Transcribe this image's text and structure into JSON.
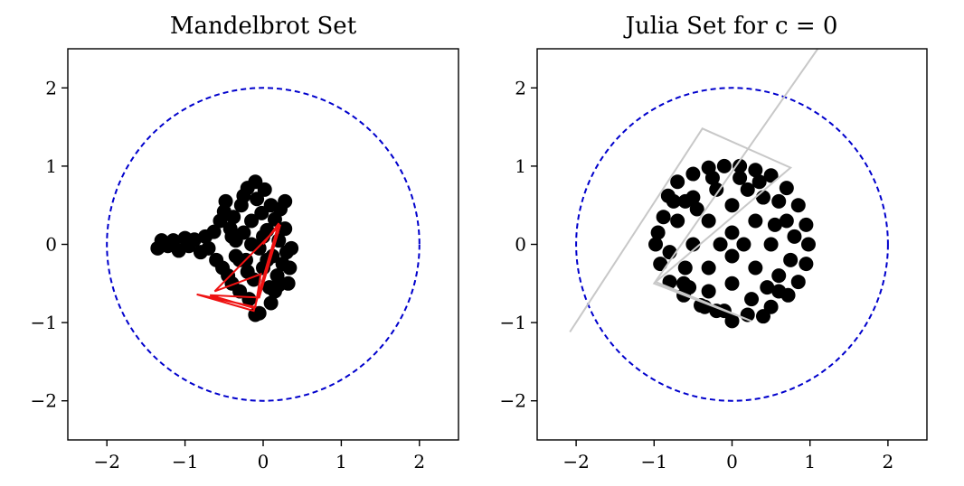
{
  "chart_data": [
    {
      "type": "scatter",
      "title": "Mandelbrot Set",
      "xlabel": "",
      "ylabel": "",
      "xlim": [
        -2.5,
        2.5
      ],
      "ylim": [
        -2.5,
        2.5
      ],
      "xticks": [
        -2,
        -1,
        0,
        1,
        2
      ],
      "yticks": [
        -2,
        -1,
        0,
        1,
        2
      ],
      "xtick_labels": [
        "−2",
        "−1",
        "0",
        "1",
        "2"
      ],
      "ytick_labels": [
        "−2",
        "−1",
        "0",
        "1",
        "2"
      ],
      "grid": false,
      "point_color": "#000000",
      "circle": {
        "center": [
          0,
          0
        ],
        "radius": 2,
        "color": "#0000cc",
        "style": "dashed"
      },
      "path": {
        "color": "#ee1111",
        "points": [
          [
            0.0,
            0.0
          ],
          [
            0.2,
            0.27
          ],
          [
            -0.12,
            -0.85
          ],
          [
            -0.85,
            -0.64
          ],
          [
            -0.1,
            -0.8
          ],
          [
            -0.03,
            -0.38
          ],
          [
            -0.62,
            -0.6
          ],
          [
            0.22,
            0.25
          ],
          [
            -0.05,
            -0.68
          ],
          [
            -0.68,
            -0.65
          ],
          [
            -0.1,
            -0.82
          ]
        ]
      },
      "points": [
        [
          -1.35,
          -0.05
        ],
        [
          -1.3,
          0.05
        ],
        [
          -1.22,
          -0.02
        ],
        [
          -1.15,
          0.05
        ],
        [
          -1.08,
          -0.08
        ],
        [
          -1.0,
          0.08
        ],
        [
          -0.95,
          -0.02
        ],
        [
          -0.88,
          0.06
        ],
        [
          -0.8,
          -0.1
        ],
        [
          -0.74,
          0.1
        ],
        [
          -0.7,
          -0.05
        ],
        [
          -0.63,
          0.16
        ],
        [
          -0.6,
          -0.2
        ],
        [
          -0.55,
          0.3
        ],
        [
          -0.52,
          -0.3
        ],
        [
          -0.5,
          0.42
        ],
        [
          -0.48,
          0.55
        ],
        [
          -0.45,
          -0.4
        ],
        [
          -0.42,
          0.2
        ],
        [
          -0.4,
          -0.5
        ],
        [
          -0.38,
          0.35
        ],
        [
          -0.35,
          0.05
        ],
        [
          -0.3,
          -0.6
        ],
        [
          -0.28,
          0.5
        ],
        [
          -0.25,
          0.62
        ],
        [
          -0.22,
          -0.2
        ],
        [
          -0.2,
          0.72
        ],
        [
          -0.18,
          -0.7
        ],
        [
          -0.15,
          0.3
        ],
        [
          -0.12,
          -0.45
        ],
        [
          -0.1,
          0.8
        ],
        [
          -0.08,
          0.58
        ],
        [
          -0.05,
          -0.05
        ],
        [
          -0.02,
          0.4
        ],
        [
          0.0,
          -0.3
        ],
        [
          0.02,
          0.7
        ],
        [
          0.05,
          0.18
        ],
        [
          0.08,
          -0.55
        ],
        [
          0.1,
          0.5
        ],
        [
          0.12,
          -0.15
        ],
        [
          0.15,
          0.32
        ],
        [
          0.18,
          -0.4
        ],
        [
          0.2,
          0.05
        ],
        [
          0.22,
          0.45
        ],
        [
          0.25,
          -0.25
        ],
        [
          0.28,
          0.2
        ],
        [
          0.3,
          -0.1
        ],
        [
          0.32,
          -0.5
        ],
        [
          0.34,
          -0.3
        ],
        [
          0.36,
          -0.05
        ],
        [
          0.2,
          -0.52
        ],
        [
          0.28,
          0.55
        ],
        [
          0.1,
          -0.75
        ],
        [
          -0.05,
          -0.88
        ],
        [
          -0.1,
          -0.9
        ],
        [
          -0.3,
          -0.2
        ],
        [
          -0.4,
          0.1
        ],
        [
          -0.25,
          0.15
        ],
        [
          -0.15,
          0.0
        ],
        [
          0.0,
          0.1
        ],
        [
          -0.2,
          -0.35
        ],
        [
          0.05,
          -0.2
        ],
        [
          -0.35,
          -0.15
        ],
        [
          0.15,
          -0.6
        ]
      ]
    },
    {
      "type": "scatter",
      "title": "Julia Set for c = 0",
      "xlabel": "",
      "ylabel": "",
      "xlim": [
        -2.5,
        2.5
      ],
      "ylim": [
        -2.5,
        2.5
      ],
      "xticks": [
        -2,
        -1,
        0,
        1,
        2
      ],
      "yticks": [
        -2,
        -1,
        0,
        1,
        2
      ],
      "xtick_labels": [
        "−2",
        "−1",
        "0",
        "1",
        "2"
      ],
      "ytick_labels": [
        "−2",
        "−1",
        "0",
        "1",
        "2"
      ],
      "grid": false,
      "point_color": "#000000",
      "circle": {
        "center": [
          0,
          0
        ],
        "radius": 2,
        "color": "#0000cc",
        "style": "dashed"
      },
      "path": {
        "color": "#c8c8c8",
        "points": [
          [
            -2.08,
            -1.12
          ],
          [
            -0.38,
            1.48
          ],
          [
            0.75,
            0.98
          ],
          [
            -0.98,
            -0.48
          ],
          [
            0.25,
            -0.98
          ],
          [
            -1.0,
            -0.5
          ],
          [
            1.1,
            2.5
          ]
        ]
      },
      "points": [
        [
          -0.95,
          0.15
        ],
        [
          -0.88,
          0.35
        ],
        [
          -0.82,
          0.62
        ],
        [
          -0.7,
          0.8
        ],
        [
          -0.5,
          0.9
        ],
        [
          -0.3,
          0.98
        ],
        [
          -0.1,
          1.0
        ],
        [
          0.1,
          1.0
        ],
        [
          0.3,
          0.95
        ],
        [
          0.5,
          0.88
        ],
        [
          0.7,
          0.72
        ],
        [
          0.85,
          0.5
        ],
        [
          0.95,
          0.25
        ],
        [
          0.98,
          0.0
        ],
        [
          0.95,
          -0.25
        ],
        [
          0.85,
          -0.48
        ],
        [
          0.72,
          -0.65
        ],
        [
          0.5,
          -0.8
        ],
        [
          0.4,
          -0.92
        ],
        [
          0.2,
          -0.9
        ],
        [
          0.0,
          -0.98
        ],
        [
          -0.2,
          -0.85
        ],
        [
          -0.4,
          -0.78
        ],
        [
          -0.62,
          -0.65
        ],
        [
          -0.8,
          -0.48
        ],
        [
          -0.92,
          -0.25
        ],
        [
          -0.98,
          0.0
        ],
        [
          -0.7,
          0.3
        ],
        [
          -0.5,
          0.6
        ],
        [
          -0.6,
          -0.3
        ],
        [
          -0.3,
          -0.6
        ],
        [
          0.6,
          -0.4
        ],
        [
          0.7,
          0.3
        ],
        [
          0.4,
          0.6
        ],
        [
          -0.2,
          0.7
        ],
        [
          0.2,
          0.7
        ],
        [
          0.5,
          0.0
        ],
        [
          -0.5,
          0.0
        ],
        [
          0.0,
          0.5
        ],
        [
          0.0,
          -0.5
        ],
        [
          0.3,
          0.3
        ],
        [
          -0.3,
          0.3
        ],
        [
          0.3,
          -0.3
        ],
        [
          -0.3,
          -0.3
        ],
        [
          0.15,
          0.0
        ],
        [
          -0.15,
          0.0
        ],
        [
          0.0,
          0.15
        ],
        [
          0.0,
          -0.15
        ],
        [
          0.6,
          0.55
        ],
        [
          -0.6,
          0.55
        ],
        [
          0.6,
          -0.6
        ],
        [
          -0.62,
          -0.5
        ],
        [
          0.8,
          0.1
        ],
        [
          -0.8,
          -0.1
        ],
        [
          0.1,
          0.85
        ],
        [
          -0.1,
          -0.85
        ],
        [
          0.45,
          -0.55
        ],
        [
          -0.45,
          0.45
        ],
        [
          0.25,
          -0.7
        ],
        [
          -0.25,
          0.85
        ],
        [
          0.75,
          -0.2
        ],
        [
          -0.75,
          0.55
        ],
        [
          0.55,
          0.25
        ],
        [
          -0.55,
          -0.55
        ],
        [
          0.35,
          0.8
        ],
        [
          -0.35,
          -0.8
        ]
      ]
    }
  ]
}
